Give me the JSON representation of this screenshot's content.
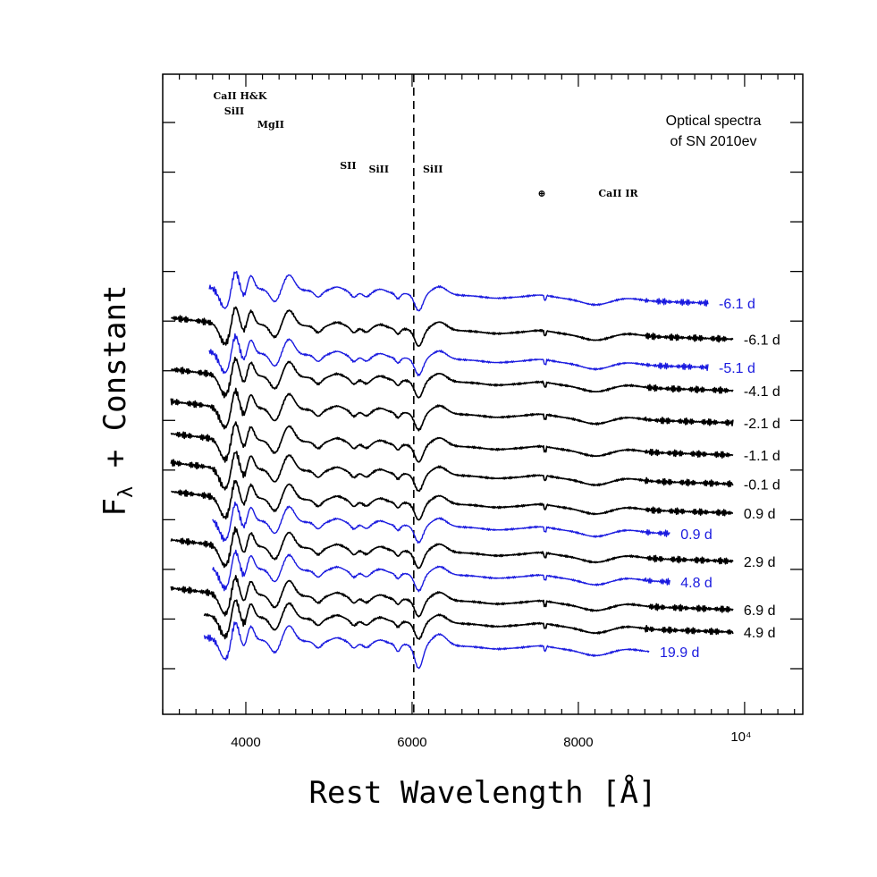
{
  "chart_data": {
    "type": "line",
    "title": "",
    "annotation_lines": [
      "Optical spectra",
      "of SN 2010ev"
    ],
    "xlabel": "Rest Wavelength [Å]",
    "ylabel_main": "F",
    "ylabel_sub": "λ",
    "ylabel_rest": " + Constant",
    "xlim": [
      3000,
      10700
    ],
    "x_ticks": [
      4000,
      6000,
      8000
    ],
    "x_tick_labels": [
      "4000",
      "6000",
      "8000"
    ],
    "x_extra_label": "10⁴",
    "x_extra_value": 10000,
    "y_ticks_count": 12,
    "marker_line_x": 6020,
    "line_ids": [
      {
        "label": "CaII  H&K",
        "x": 3930,
        "row": 0
      },
      {
        "label": "SiII",
        "x": 3860,
        "row": 1
      },
      {
        "label": "MgII",
        "x": 4300,
        "row": 2
      },
      {
        "label": "SII",
        "x": 5230,
        "row": 3
      },
      {
        "label": "SiII",
        "x": 5600,
        "row": 4
      },
      {
        "label": "SiII",
        "x": 6250,
        "row": 4
      },
      {
        "label": "⊕",
        "x": 7560,
        "row": 5
      },
      {
        "label": "CaII  IR",
        "x": 8480,
        "row": 5
      }
    ],
    "colors": {
      "black": "#000000",
      "blue": "#1a1adf"
    },
    "series": [
      {
        "name": "-6.1 d",
        "color": "blue",
        "x_start": 3560,
        "x_end": 9560,
        "offset": 11.3,
        "phase": -6.1
      },
      {
        "name": "-6.1 d",
        "color": "black",
        "x_start": 3100,
        "x_end": 9860,
        "offset": 10.2,
        "phase": -6.1
      },
      {
        "name": "-5.1 d",
        "color": "blue",
        "x_start": 3560,
        "x_end": 9560,
        "offset": 9.3,
        "phase": -5.1
      },
      {
        "name": "-4.1 d",
        "color": "black",
        "x_start": 3100,
        "x_end": 9860,
        "offset": 8.6,
        "phase": -4.1
      },
      {
        "name": "-2.1 d",
        "color": "black",
        "x_start": 3100,
        "x_end": 9860,
        "offset": 7.6,
        "phase": -2.1
      },
      {
        "name": "-1.1 d",
        "color": "black",
        "x_start": 3100,
        "x_end": 9860,
        "offset": 6.6,
        "phase": -1.1
      },
      {
        "name": "-0.1 d",
        "color": "black",
        "x_start": 3100,
        "x_end": 9860,
        "offset": 5.7,
        "phase": -0.1
      },
      {
        "name": "0.9 d",
        "color": "black",
        "x_start": 3100,
        "x_end": 9860,
        "offset": 4.8,
        "phase": 0.9
      },
      {
        "name": "0.9 d",
        "color": "blue",
        "x_start": 3600,
        "x_end": 9100,
        "offset": 4.1,
        "phase": 0.9
      },
      {
        "name": "2.9 d",
        "color": "black",
        "x_start": 3100,
        "x_end": 9860,
        "offset": 3.3,
        "phase": 2.9
      },
      {
        "name": "4.8 d",
        "color": "blue",
        "x_start": 3600,
        "x_end": 9100,
        "offset": 2.6,
        "phase": 4.8
      },
      {
        "name": "6.9 d",
        "color": "black",
        "x_start": 3100,
        "x_end": 9860,
        "offset": 1.8,
        "phase": 6.9
      },
      {
        "name": "4.9 d",
        "color": "black",
        "x_start": 3500,
        "x_end": 9860,
        "offset": 1.1,
        "phase": 4.9
      },
      {
        "name": "19.9 d",
        "color": "blue",
        "x_start": 3500,
        "x_end": 8850,
        "offset": 0.4,
        "phase": 19.9
      }
    ]
  }
}
